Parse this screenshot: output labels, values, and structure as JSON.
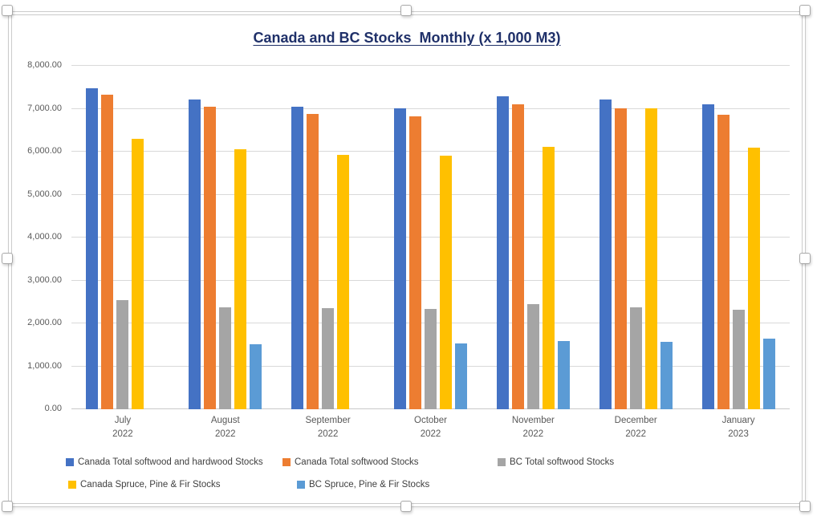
{
  "chart_data": {
    "type": "bar",
    "title": "Canada and BC Stocks  Monthly (x 1,000 M3)",
    "categories": [
      "July 2022",
      "August 2022",
      "September 2022",
      "October 2022",
      "November 2022",
      "December 2022",
      "January 2023"
    ],
    "category_lines": [
      [
        "July",
        "2022"
      ],
      [
        "August",
        "2022"
      ],
      [
        "September",
        "2022"
      ],
      [
        "October",
        "2022"
      ],
      [
        "November",
        "2022"
      ],
      [
        "December",
        "2022"
      ],
      [
        "January",
        "2023"
      ]
    ],
    "series": [
      {
        "name": "Canada Total softwood and hardwood Stocks",
        "color": "#4472C4",
        "values": [
          7480,
          7220,
          7050,
          7010,
          7290,
          7220,
          7100
        ]
      },
      {
        "name": "Canada Total softwood Stocks",
        "color": "#ED7D31",
        "values": [
          7330,
          7050,
          6880,
          6820,
          7100,
          7010,
          6860
        ]
      },
      {
        "name": "BC Total softwood Stocks",
        "color": "#A5A5A5",
        "values": [
          2540,
          2380,
          2360,
          2340,
          2450,
          2370,
          2310
        ]
      },
      {
        "name": "Canada Spruce, Pine & Fir Stocks",
        "color": "#FFC000",
        "values": [
          6300,
          6050,
          5920,
          5910,
          6110,
          7000,
          6090
        ]
      },
      {
        "name": "BC Spruce, Pine & Fir Stocks",
        "color": "#5B9BD5",
        "values": [
          null,
          1510,
          null,
          1540,
          1580,
          1570,
          1650
        ]
      }
    ],
    "ylim": [
      0,
      8000
    ],
    "ytick_step": 1000,
    "ytick_labels": [
      "0.00",
      "1,000.00",
      "2,000.00",
      "3,000.00",
      "4,000.00",
      "5,000.00",
      "6,000.00",
      "7,000.00",
      "8,000.00"
    ],
    "grid": true,
    "legend_position": "bottom",
    "legend_rows": [
      [
        0,
        1,
        2
      ],
      [
        3,
        4
      ]
    ]
  },
  "colors": {
    "title": "#1F3069",
    "axis_text": "#595959",
    "legend_text": "#404040",
    "gridline": "#D9D9D9",
    "axis_line": "#C9C9C9",
    "frame_border": "#CBCBCB",
    "series_blue": "#4472C4",
    "series_orange": "#ED7D31",
    "series_gray": "#A5A5A5",
    "series_yellow": "#FFC000",
    "series_light_blue": "#5B9BD5"
  }
}
